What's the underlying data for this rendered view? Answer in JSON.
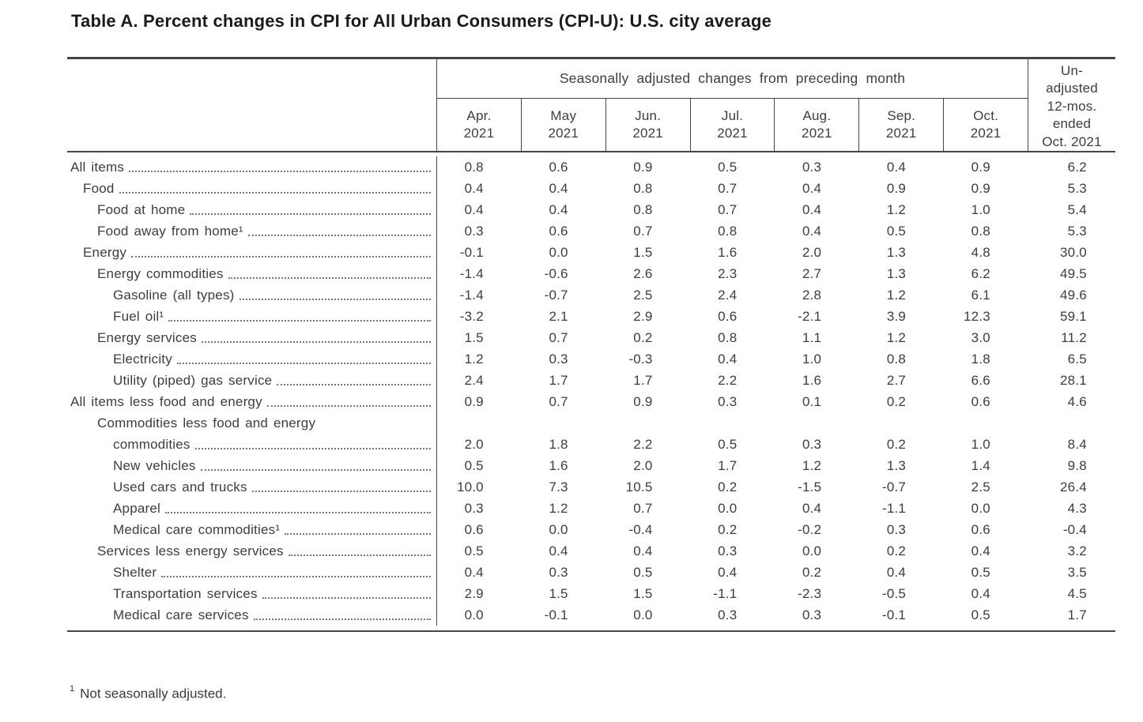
{
  "title": "Table A. Percent changes in CPI for All Urban Consumers (CPI-U): U.S. city average",
  "table": {
    "header": {
      "span_label": "Seasonally adjusted changes from preceding month",
      "months": [
        {
          "line1": "Apr.",
          "line2": "2021"
        },
        {
          "line1": "May",
          "line2": "2021"
        },
        {
          "line1": "Jun.",
          "line2": "2021"
        },
        {
          "line1": "Jul.",
          "line2": "2021"
        },
        {
          "line1": "Aug.",
          "line2": "2021"
        },
        {
          "line1": "Sep.",
          "line2": "2021"
        },
        {
          "line1": "Oct.",
          "line2": "2021"
        }
      ],
      "unadjusted_lines": [
        "Un-",
        "adjusted",
        "12-mos.",
        "ended",
        "Oct. 2021"
      ]
    },
    "rows": [
      {
        "label": "All items",
        "indent": 0,
        "values": [
          "0.8",
          "0.6",
          "0.9",
          "0.5",
          "0.3",
          "0.4",
          "0.9",
          "6.2"
        ]
      },
      {
        "label": "Food",
        "indent": 1,
        "values": [
          "0.4",
          "0.4",
          "0.8",
          "0.7",
          "0.4",
          "0.9",
          "0.9",
          "5.3"
        ]
      },
      {
        "label": "Food at home",
        "indent": 2,
        "values": [
          "0.4",
          "0.4",
          "0.8",
          "0.7",
          "0.4",
          "1.2",
          "1.0",
          "5.4"
        ]
      },
      {
        "label": "Food away from home¹",
        "indent": 2,
        "values": [
          "0.3",
          "0.6",
          "0.7",
          "0.8",
          "0.4",
          "0.5",
          "0.8",
          "5.3"
        ]
      },
      {
        "label": "Energy",
        "indent": 1,
        "values": [
          "-0.1",
          "0.0",
          "1.5",
          "1.6",
          "2.0",
          "1.3",
          "4.8",
          "30.0"
        ]
      },
      {
        "label": "Energy commodities",
        "indent": 2,
        "values": [
          "-1.4",
          "-0.6",
          "2.6",
          "2.3",
          "2.7",
          "1.3",
          "6.2",
          "49.5"
        ]
      },
      {
        "label": "Gasoline (all types)",
        "indent": 3,
        "values": [
          "-1.4",
          "-0.7",
          "2.5",
          "2.4",
          "2.8",
          "1.2",
          "6.1",
          "49.6"
        ]
      },
      {
        "label": "Fuel oil¹",
        "indent": 3,
        "values": [
          "-3.2",
          "2.1",
          "2.9",
          "0.6",
          "-2.1",
          "3.9",
          "12.3",
          "59.1"
        ]
      },
      {
        "label": "Energy services",
        "indent": 2,
        "values": [
          "1.5",
          "0.7",
          "0.2",
          "0.8",
          "1.1",
          "1.2",
          "3.0",
          "11.2"
        ]
      },
      {
        "label": "Electricity",
        "indent": 3,
        "values": [
          "1.2",
          "0.3",
          "-0.3",
          "0.4",
          "1.0",
          "0.8",
          "1.8",
          "6.5"
        ]
      },
      {
        "label": "Utility (piped) gas service",
        "indent": 3,
        "values": [
          "2.4",
          "1.7",
          "1.7",
          "2.2",
          "1.6",
          "2.7",
          "6.6",
          "28.1"
        ]
      },
      {
        "label": "All items less food and energy",
        "indent": 0,
        "values": [
          "0.9",
          "0.7",
          "0.9",
          "0.3",
          "0.1",
          "0.2",
          "0.6",
          "4.6"
        ]
      },
      {
        "label": "Commodities less food and energy",
        "label2": "commodities",
        "indent": 2,
        "indent2": 3,
        "values": [
          "2.0",
          "1.8",
          "2.2",
          "0.5",
          "0.3",
          "0.2",
          "1.0",
          "8.4"
        ]
      },
      {
        "label": "New vehicles",
        "indent": 3,
        "values": [
          "0.5",
          "1.6",
          "2.0",
          "1.7",
          "1.2",
          "1.3",
          "1.4",
          "9.8"
        ]
      },
      {
        "label": "Used cars and trucks",
        "indent": 3,
        "values": [
          "10.0",
          "7.3",
          "10.5",
          "0.2",
          "-1.5",
          "-0.7",
          "2.5",
          "26.4"
        ]
      },
      {
        "label": "Apparel",
        "indent": 3,
        "values": [
          "0.3",
          "1.2",
          "0.7",
          "0.0",
          "0.4",
          "-1.1",
          "0.0",
          "4.3"
        ]
      },
      {
        "label": "Medical care commodities¹",
        "indent": 3,
        "values": [
          "0.6",
          "0.0",
          "-0.4",
          "0.2",
          "-0.2",
          "0.3",
          "0.6",
          "-0.4"
        ]
      },
      {
        "label": "Services less energy services",
        "indent": 2,
        "values": [
          "0.5",
          "0.4",
          "0.4",
          "0.3",
          "0.0",
          "0.2",
          "0.4",
          "3.2"
        ]
      },
      {
        "label": "Shelter",
        "indent": 3,
        "values": [
          "0.4",
          "0.3",
          "0.5",
          "0.4",
          "0.2",
          "0.4",
          "0.5",
          "3.5"
        ]
      },
      {
        "label": "Transportation services",
        "indent": 3,
        "values": [
          "2.9",
          "1.5",
          "1.5",
          "-1.1",
          "-2.3",
          "-0.5",
          "0.4",
          "4.5"
        ]
      },
      {
        "label": "Medical care services",
        "indent": 3,
        "values": [
          "0.0",
          "-0.1",
          "0.0",
          "0.3",
          "0.3",
          "-0.1",
          "0.5",
          "1.7"
        ]
      }
    ]
  },
  "footnote": {
    "sup": "1",
    "text": "Not seasonally adjusted."
  }
}
